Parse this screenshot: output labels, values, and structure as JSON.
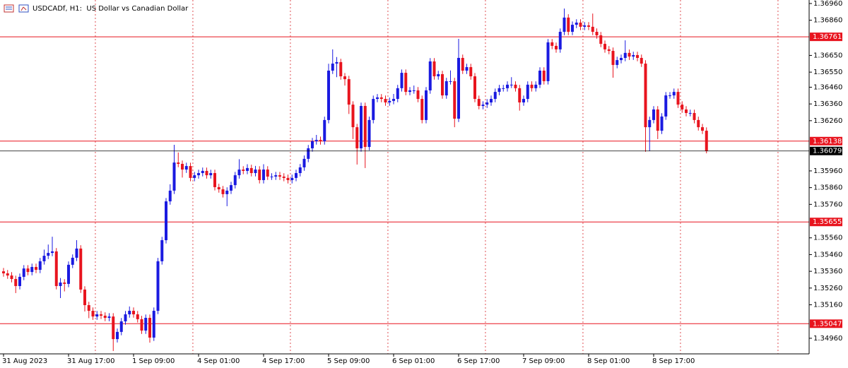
{
  "chart_data": {
    "type": "candlestick",
    "title": "USDCADf, H1:  US Dollar vs Canadian Dollar",
    "up_color": "#1a1ae0",
    "down_color": "#e8141e",
    "level_color": "#e8141e",
    "last_price_color": "#000000",
    "categories": [
      "31 Aug 2023",
      null,
      null,
      null,
      null,
      null,
      null,
      null,
      null,
      null,
      null,
      null,
      null,
      null,
      null,
      null,
      "31 Aug 17:00",
      null,
      null,
      null,
      null,
      null,
      null,
      null,
      null,
      null,
      null,
      null,
      null,
      null,
      null,
      null,
      "1 Sep 09:00",
      null,
      null,
      null,
      null,
      null,
      null,
      null,
      null,
      null,
      null,
      null,
      null,
      null,
      null,
      null,
      "4 Sep 01:00",
      null,
      null,
      null,
      null,
      null,
      null,
      null,
      null,
      null,
      null,
      null,
      null,
      null,
      null,
      null,
      "4 Sep 17:00",
      null,
      null,
      null,
      null,
      null,
      null,
      null,
      null,
      null,
      null,
      null,
      null,
      null,
      null,
      null,
      "5 Sep 09:00",
      null,
      null,
      null,
      null,
      null,
      null,
      null,
      null,
      null,
      null,
      null,
      null,
      null,
      null,
      null,
      "6 Sep 01:00",
      null,
      null,
      null,
      null,
      null,
      null,
      null,
      null,
      null,
      null,
      null,
      null,
      null,
      null,
      null,
      "6 Sep 17:00",
      null,
      null,
      null,
      null,
      null,
      null,
      null,
      null,
      null,
      null,
      null,
      null,
      null,
      null,
      null,
      "7 Sep 09:00",
      null,
      null,
      null,
      null,
      null,
      null,
      null,
      null,
      null,
      null,
      null,
      null,
      null,
      null,
      null,
      "8 Sep 01:00",
      null,
      null,
      null,
      null,
      null,
      null,
      null,
      null,
      null,
      null,
      null,
      null,
      null,
      null,
      null,
      "8 Sep 17:00",
      null,
      null,
      null,
      null,
      null,
      null,
      null,
      null,
      null,
      null,
      null,
      null,
      null
    ],
    "open": [
      1.3536,
      1.35348,
      1.35335,
      1.35314,
      1.35272,
      1.35327,
      1.35377,
      1.35356,
      1.35386,
      1.35369,
      1.3542,
      1.35453,
      1.3547,
      1.35479,
      1.35272,
      1.35293,
      1.35285,
      1.35399,
      1.35441,
      1.35496,
      1.35251,
      1.35158,
      1.35124,
      1.3509,
      1.35103,
      1.35095,
      1.35082,
      1.3509,
      1.34955,
      1.34998,
      1.35061,
      1.35103,
      1.35124,
      1.35103,
      1.35074,
      1.35006,
      1.35082,
      1.34964,
      1.35124,
      1.3542,
      1.35546,
      1.35778,
      1.35842,
      1.3601,
      1.36002,
      1.35968,
      1.35989,
      1.35918,
      1.35934,
      1.35947,
      1.3596,
      1.35934,
      1.35947,
      1.35863,
      1.3585,
      1.35821,
      1.35842,
      1.35875,
      1.35934,
      1.35968,
      1.3596,
      1.35977,
      1.35947,
      1.35968,
      1.35905,
      1.35968,
      1.35926,
      1.35926,
      1.35934,
      1.35926,
      1.35918,
      1.35905,
      1.35918,
      1.35947,
      1.35981,
      1.36032,
      1.36095,
      1.36137,
      1.36145,
      1.36137,
      1.36264,
      1.36559,
      1.36601,
      1.3661,
      1.36525,
      1.36508,
      1.36356,
      1.36221,
      1.36095,
      1.36348,
      1.36103,
      1.36264,
      1.3639,
      1.36399,
      1.3639,
      1.36369,
      1.36378,
      1.3639,
      1.36454,
      1.36546,
      1.36432,
      1.36441,
      1.36441,
      1.3639,
      1.36264,
      1.36441,
      1.36614,
      1.36525,
      1.36538,
      1.36411,
      1.36496,
      1.36496,
      1.36272,
      1.36635,
      1.36559,
      1.3658,
      1.36525,
      1.3639,
      1.36348,
      1.36356,
      1.36369,
      1.3639,
      1.36432,
      1.36454,
      1.36454,
      1.36475,
      1.36475,
      1.36454,
      1.36369,
      1.3639,
      1.36475,
      1.36454,
      1.36475,
      1.36559,
      1.36496,
      1.36728,
      1.36707,
      1.36686,
      1.36791,
      1.36876,
      1.36791,
      1.36833,
      1.36846,
      1.36821,
      1.36829,
      1.36821,
      1.36791,
      1.3677,
      1.36719,
      1.36686,
      1.36677,
      1.36593,
      1.36622,
      1.36635,
      1.36665,
      1.36643,
      1.36652,
      1.36635,
      1.36601,
      1.36221,
      1.36264,
      1.36327,
      1.362,
      1.36285,
      1.36411,
      1.36411,
      1.36432,
      1.36356,
      1.36327,
      1.36306,
      1.36306,
      1.36264,
      1.36221,
      1.362
    ],
    "high": [
      1.3538,
      1.35368,
      1.35355,
      1.35334,
      1.35347,
      1.35397,
      1.35397,
      1.35406,
      1.35406,
      1.3544,
      1.3549,
      1.3552,
      1.35567,
      1.35499,
      1.3532,
      1.35313,
      1.35419,
      1.35461,
      1.35546,
      1.35516,
      1.35271,
      1.35178,
      1.35144,
      1.35123,
      1.35123,
      1.35115,
      1.3511,
      1.3511,
      1.35018,
      1.35081,
      1.35123,
      1.3515,
      1.35144,
      1.35123,
      1.35094,
      1.35102,
      1.35102,
      1.35144,
      1.3544,
      1.35566,
      1.35798,
      1.3588,
      1.36116,
      1.3607,
      1.36022,
      1.36009,
      1.36009,
      1.35954,
      1.35967,
      1.3598,
      1.3598,
      1.35967,
      1.35967,
      1.35883,
      1.3587,
      1.35862,
      1.35895,
      1.35954,
      1.3603,
      1.35988,
      1.36,
      1.35997,
      1.3599,
      1.35988,
      1.36,
      1.35988,
      1.35946,
      1.35954,
      1.35954,
      1.35946,
      1.35938,
      1.35938,
      1.35967,
      1.36001,
      1.36052,
      1.36115,
      1.36157,
      1.36175,
      1.36165,
      1.36284,
      1.366,
      1.36686,
      1.3664,
      1.3663,
      1.36545,
      1.36528,
      1.36376,
      1.36241,
      1.36368,
      1.36368,
      1.36284,
      1.3641,
      1.36419,
      1.36419,
      1.3641,
      1.36398,
      1.3642,
      1.36474,
      1.36566,
      1.36566,
      1.36461,
      1.3647,
      1.36461,
      1.3641,
      1.36461,
      1.36634,
      1.36634,
      1.36558,
      1.36558,
      1.36516,
      1.3656,
      1.36516,
      1.36749,
      1.36655,
      1.366,
      1.366,
      1.36545,
      1.3641,
      1.36376,
      1.36389,
      1.3641,
      1.36452,
      1.36474,
      1.36474,
      1.36495,
      1.3652,
      1.36495,
      1.36474,
      1.3641,
      1.36495,
      1.36495,
      1.36495,
      1.36579,
      1.36579,
      1.36748,
      1.36748,
      1.36727,
      1.36811,
      1.3693,
      1.36896,
      1.36853,
      1.36866,
      1.36866,
      1.36849,
      1.36849,
      1.369,
      1.36811,
      1.3679,
      1.36739,
      1.36706,
      1.36697,
      1.36642,
      1.36655,
      1.3674,
      1.36685,
      1.36672,
      1.36672,
      1.36655,
      1.36621,
      1.36284,
      1.36347,
      1.36347,
      1.36305,
      1.36431,
      1.36431,
      1.36452,
      1.36452,
      1.36376,
      1.36347,
      1.36326,
      1.36326,
      1.36284,
      1.36241,
      1.3622
    ],
    "low": [
      1.35328,
      1.35315,
      1.35294,
      1.3523,
      1.35252,
      1.35307,
      1.35336,
      1.35336,
      1.35349,
      1.35349,
      1.354,
      1.35433,
      1.3545,
      1.35252,
      1.352,
      1.3524,
      1.35265,
      1.35379,
      1.35421,
      1.35231,
      1.3512,
      1.3508,
      1.3507,
      1.3507,
      1.35075,
      1.35062,
      1.35062,
      1.34884,
      1.34935,
      1.34978,
      1.35041,
      1.35083,
      1.35083,
      1.35054,
      1.34986,
      1.34986,
      1.34934,
      1.34944,
      1.35104,
      1.354,
      1.35526,
      1.35758,
      1.35822,
      1.35982,
      1.3592,
      1.35948,
      1.35898,
      1.35898,
      1.35914,
      1.35927,
      1.35914,
      1.35914,
      1.35843,
      1.3583,
      1.35801,
      1.35749,
      1.35822,
      1.35855,
      1.35914,
      1.3594,
      1.3594,
      1.35927,
      1.35927,
      1.35885,
      1.35885,
      1.35906,
      1.35906,
      1.35906,
      1.35906,
      1.35898,
      1.35885,
      1.35885,
      1.35898,
      1.35927,
      1.35961,
      1.36012,
      1.36075,
      1.36117,
      1.36117,
      1.36117,
      1.36244,
      1.36539,
      1.3652,
      1.36505,
      1.3647,
      1.363,
      1.3615,
      1.35998,
      1.36075,
      1.35977,
      1.36083,
      1.36244,
      1.3637,
      1.3637,
      1.36349,
      1.36349,
      1.36358,
      1.3637,
      1.36434,
      1.36412,
      1.36412,
      1.36421,
      1.3637,
      1.36244,
      1.36244,
      1.36421,
      1.36505,
      1.36505,
      1.36391,
      1.36391,
      1.36476,
      1.36221,
      1.36252,
      1.36539,
      1.36539,
      1.36505,
      1.3637,
      1.36328,
      1.36328,
      1.36336,
      1.36349,
      1.3637,
      1.36412,
      1.36434,
      1.36434,
      1.36455,
      1.36434,
      1.3632,
      1.36349,
      1.3637,
      1.36434,
      1.36434,
      1.36455,
      1.36476,
      1.36476,
      1.36687,
      1.36666,
      1.36666,
      1.36771,
      1.36771,
      1.36771,
      1.36813,
      1.36801,
      1.36801,
      1.36801,
      1.36771,
      1.3675,
      1.36699,
      1.36666,
      1.36657,
      1.36517,
      1.36573,
      1.36602,
      1.36615,
      1.36623,
      1.36623,
      1.36615,
      1.36581,
      1.36074,
      1.3608,
      1.36244,
      1.3615,
      1.3618,
      1.36265,
      1.36391,
      1.36391,
      1.36336,
      1.36307,
      1.36286,
      1.36286,
      1.36244,
      1.36201,
      1.3618,
      1.36065
    ],
    "close": [
      1.35348,
      1.35335,
      1.35314,
      1.35272,
      1.35327,
      1.35377,
      1.35356,
      1.35386,
      1.35369,
      1.3542,
      1.35453,
      1.3547,
      1.35479,
      1.35272,
      1.35293,
      1.35285,
      1.35399,
      1.35441,
      1.35496,
      1.35251,
      1.35158,
      1.35124,
      1.3509,
      1.35103,
      1.35095,
      1.35082,
      1.3509,
      1.34955,
      1.34998,
      1.35061,
      1.35103,
      1.35124,
      1.35103,
      1.35074,
      1.35006,
      1.35082,
      1.34964,
      1.35124,
      1.3542,
      1.35546,
      1.35778,
      1.35842,
      1.3601,
      1.36002,
      1.35968,
      1.35989,
      1.35918,
      1.35934,
      1.35947,
      1.3596,
      1.35934,
      1.35947,
      1.35863,
      1.3585,
      1.35821,
      1.35842,
      1.35875,
      1.35934,
      1.35968,
      1.3596,
      1.35977,
      1.35947,
      1.35968,
      1.35905,
      1.35968,
      1.35926,
      1.35926,
      1.35934,
      1.35926,
      1.35918,
      1.35905,
      1.35918,
      1.35947,
      1.35981,
      1.36032,
      1.36095,
      1.36137,
      1.36145,
      1.36137,
      1.36264,
      1.36559,
      1.36601,
      1.3661,
      1.36525,
      1.36508,
      1.36356,
      1.36221,
      1.36095,
      1.36348,
      1.36103,
      1.36264,
      1.3639,
      1.36399,
      1.3639,
      1.36369,
      1.36378,
      1.3639,
      1.36454,
      1.36546,
      1.36432,
      1.36441,
      1.36441,
      1.3639,
      1.36264,
      1.36441,
      1.36614,
      1.36525,
      1.36538,
      1.36411,
      1.36496,
      1.36496,
      1.36272,
      1.36635,
      1.36559,
      1.3658,
      1.36525,
      1.3639,
      1.36348,
      1.36356,
      1.36369,
      1.3639,
      1.36432,
      1.36454,
      1.36454,
      1.36475,
      1.36475,
      1.36454,
      1.36369,
      1.3639,
      1.36475,
      1.36454,
      1.36475,
      1.36559,
      1.36496,
      1.36728,
      1.36707,
      1.36686,
      1.36791,
      1.36876,
      1.36791,
      1.36833,
      1.36846,
      1.36821,
      1.36829,
      1.36821,
      1.36791,
      1.3677,
      1.36719,
      1.36686,
      1.36677,
      1.36593,
      1.36622,
      1.36635,
      1.36665,
      1.36643,
      1.36652,
      1.36635,
      1.36601,
      1.36221,
      1.36264,
      1.36327,
      1.362,
      1.36285,
      1.36411,
      1.36411,
      1.36432,
      1.36356,
      1.36327,
      1.36306,
      1.36306,
      1.36264,
      1.36221,
      1.362,
      1.36079
    ],
    "ylim": [
      1.34871,
      1.36981
    ],
    "yticks": [
      {
        "value": 1.3696,
        "label": "1.36960"
      },
      {
        "value": 1.3686,
        "label": "1.36860"
      },
      {
        "value": 1.3665,
        "label": "1.36650"
      },
      {
        "value": 1.3655,
        "label": "1.36550"
      },
      {
        "value": 1.3646,
        "label": "1.36460"
      },
      {
        "value": 1.3636,
        "label": "1.36360"
      },
      {
        "value": 1.3626,
        "label": "1.36260"
      },
      {
        "value": 1.3596,
        "label": "1.35960"
      },
      {
        "value": 1.3586,
        "label": "1.35860"
      },
      {
        "value": 1.3576,
        "label": "1.35760"
      },
      {
        "value": 1.3556,
        "label": "1.35560"
      },
      {
        "value": 1.3546,
        "label": "1.35460"
      },
      {
        "value": 1.3536,
        "label": "1.35360"
      },
      {
        "value": 1.3526,
        "label": "1.35260"
      },
      {
        "value": 1.3516,
        "label": "1.35160"
      },
      {
        "value": 1.3496,
        "label": "1.34960"
      }
    ],
    "levels": [
      1.36761,
      1.36138,
      1.35655,
      1.35047
    ],
    "last_price": 1.36079
  }
}
